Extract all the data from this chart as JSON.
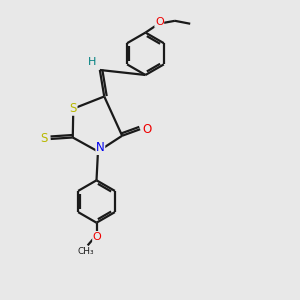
{
  "bg_color": "#e8e8e8",
  "bond_color": "#1a1a1a",
  "S_color": "#b8b800",
  "N_color": "#0000ee",
  "O_color": "#ee0000",
  "H_color": "#008080",
  "lw": 1.6,
  "fig_w": 3.0,
  "fig_h": 3.0,
  "dpi": 100,
  "xlim": [
    0,
    10
  ],
  "ylim": [
    0,
    10
  ]
}
